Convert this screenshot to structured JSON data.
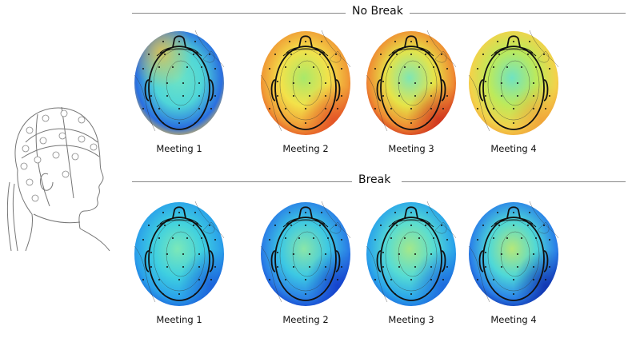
{
  "sections": [
    {
      "title": "No Break",
      "maps": [
        {
          "label": "Meeting 1",
          "colors": [
            "#6ee3c4",
            "#4fd6d8",
            "#2a6fe0",
            "#f5c040"
          ]
        },
        {
          "label": "Meeting 2",
          "colors": [
            "#a8e86a",
            "#f3e24a",
            "#f09a36",
            "#e24a24"
          ]
        },
        {
          "label": "Meeting 3",
          "colors": [
            "#7fe6b4",
            "#e6e448",
            "#ef8a32",
            "#cc2a1c"
          ]
        },
        {
          "label": "Meeting 4",
          "colors": [
            "#6fe3c2",
            "#bdea5a",
            "#f3d24a",
            "#f0a038"
          ]
        }
      ]
    },
    {
      "title": "Break",
      "maps": [
        {
          "label": "Meeting 1",
          "colors": [
            "#7ce8b8",
            "#3fd0e0",
            "#2aa0ea",
            "#1a5ad8"
          ]
        },
        {
          "label": "Meeting 2",
          "colors": [
            "#8ae6a8",
            "#3cc8e4",
            "#2a7ee6",
            "#1238c8"
          ]
        },
        {
          "label": "Meeting 3",
          "colors": [
            "#a4e88a",
            "#56dcd4",
            "#2aa4ea",
            "#1c62dc"
          ]
        },
        {
          "label": "Meeting 4",
          "colors": [
            "#b6e878",
            "#4ed8d8",
            "#2a80e8",
            "#0e2aa8"
          ]
        }
      ]
    }
  ]
}
